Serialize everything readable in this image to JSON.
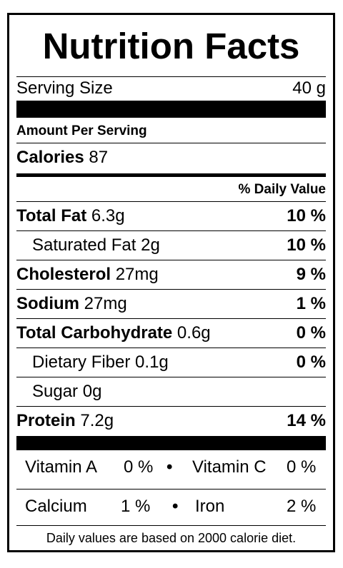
{
  "title": "Nutrition Facts",
  "serving": {
    "label": "Serving Size",
    "value": "40 g"
  },
  "amount_per_serving": "Amount Per Serving",
  "calories": {
    "label": "Calories",
    "value": "87"
  },
  "daily_value_header": "% Daily Value",
  "nutrients": [
    {
      "label": "Total Fat",
      "amount": "6.3g",
      "dv": "10 %"
    },
    {
      "label": "Saturated Fat",
      "amount": "2g",
      "dv": "10 %"
    },
    {
      "label": "Cholesterol",
      "amount": "27mg",
      "dv": "9 %"
    },
    {
      "label": "Sodium",
      "amount": "27mg",
      "dv": "1 %"
    },
    {
      "label": "Total Carbohydrate",
      "amount": "0.6g",
      "dv": "0 %"
    },
    {
      "label": "Dietary Fiber",
      "amount": "0.1g",
      "dv": "0 %"
    },
    {
      "label": "Sugar",
      "amount": "0g",
      "dv": ""
    },
    {
      "label": "Protein",
      "amount": "7.2g",
      "dv": "14 %"
    }
  ],
  "vitamins": [
    {
      "label": "Vitamin A",
      "value": "0 %"
    },
    {
      "label": "Vitamin C",
      "value": "0 %"
    },
    {
      "label": "Calcium",
      "value": "1 %"
    },
    {
      "label": "Iron",
      "value": "2 %"
    }
  ],
  "bullet": "•",
  "footnote": "Daily values are based on 2000 calorie diet."
}
